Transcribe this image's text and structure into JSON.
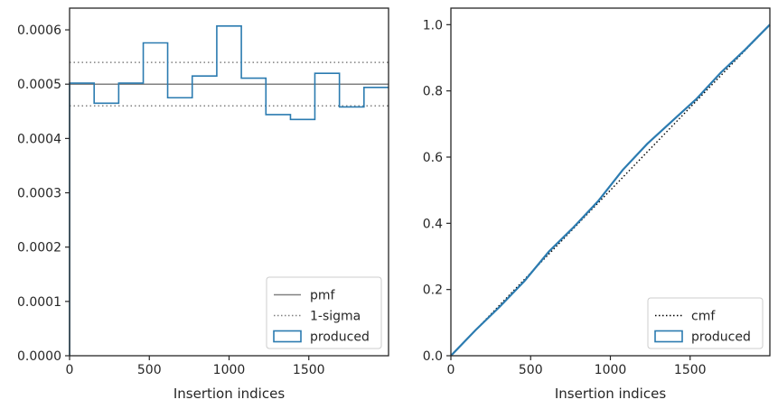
{
  "chart_data": [
    {
      "type": "step",
      "xlabel": "Insertion indices",
      "ylabel": "",
      "xlim": [
        0,
        2000
      ],
      "ylim": [
        0,
        0.00064
      ],
      "x_ticks": [
        0,
        500,
        1000,
        1500
      ],
      "y_ticks": [
        0.0,
        0.0001,
        0.0002,
        0.0003,
        0.0004,
        0.0005,
        0.0006
      ],
      "x_tick_labels": [
        "0",
        "500",
        "1000",
        "1500"
      ],
      "y_tick_labels": [
        "0.0000",
        "0.0001",
        "0.0002",
        "0.0003",
        "0.0004",
        "0.0005",
        "0.0006"
      ],
      "grid": false,
      "legend_position": "lower-right",
      "bin_edges": [
        0,
        154,
        308,
        462,
        615,
        769,
        923,
        1077,
        1231,
        1385,
        1538,
        1692,
        1846,
        2000
      ],
      "series": [
        {
          "name": "pmf",
          "kind": "hline",
          "value": 0.0005,
          "color": "#808080",
          "style": "solid"
        },
        {
          "name": "1-sigma",
          "kind": "hlines",
          "values": [
            0.00046,
            0.00054
          ],
          "color": "#808080",
          "style": "dotted"
        },
        {
          "name": "produced",
          "kind": "step-histogram",
          "color": "#2b7bb0",
          "values": [
            0.000502,
            0.000465,
            0.000502,
            0.000576,
            0.000475,
            0.000515,
            0.000607,
            0.000511,
            0.000444,
            0.000435,
            0.00052,
            0.000458,
            0.000494
          ]
        }
      ]
    },
    {
      "type": "line",
      "xlabel": "Insertion indices",
      "ylabel": "",
      "xlim": [
        0,
        2000
      ],
      "ylim": [
        0,
        1.05
      ],
      "x_ticks": [
        0,
        500,
        1000,
        1500
      ],
      "y_ticks": [
        0.0,
        0.2,
        0.4,
        0.6,
        0.8,
        1.0
      ],
      "x_tick_labels": [
        "0",
        "500",
        "1000",
        "1500"
      ],
      "y_tick_labels": [
        "0.0",
        "0.2",
        "0.4",
        "0.6",
        "0.8",
        "1.0"
      ],
      "grid": false,
      "legend_position": "lower-right",
      "series": [
        {
          "name": "cmf",
          "kind": "line",
          "style": "dotted",
          "color": "#000000",
          "x": [
            0,
            2000
          ],
          "y": [
            0,
            1.0
          ]
        },
        {
          "name": "produced",
          "kind": "line",
          "style": "solid",
          "color": "#2b7bb0",
          "x": [
            0,
            154,
            308,
            462,
            615,
            769,
            923,
            1077,
            1231,
            1385,
            1538,
            1692,
            1846,
            2000
          ],
          "y": [
            0,
            0.077,
            0.149,
            0.226,
            0.315,
            0.388,
            0.467,
            0.561,
            0.64,
            0.708,
            0.775,
            0.855,
            0.925,
            1.0
          ]
        }
      ]
    }
  ]
}
